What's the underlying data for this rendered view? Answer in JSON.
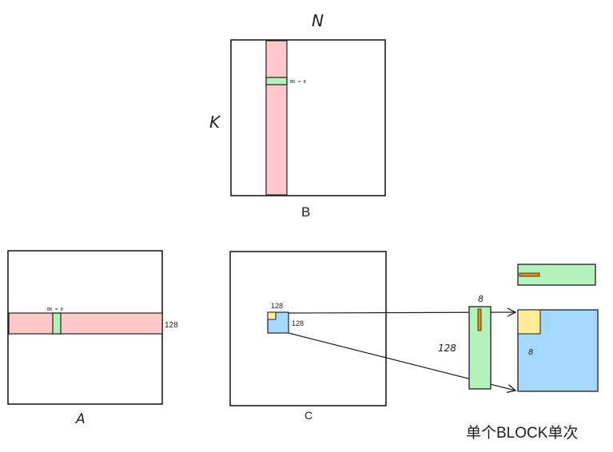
{
  "labels": {
    "n": "N",
    "k": "K",
    "b": "B",
    "a": "A",
    "c": "C",
    "bk_b": "BK = 8",
    "bk_a": "BK = 8",
    "a_rows": "128",
    "c_tile_top": "128",
    "c_tile_right": "128",
    "right_top_8": "8",
    "right_128": "128",
    "right_blue_8": "8",
    "caption": "单个BLOCK单次"
  },
  "colors": {
    "pink": "#ffc9c9",
    "green": "#b2f2bb",
    "blue": "#a5d8ff",
    "yellow": "#ffec99",
    "orange": "#f08c00",
    "stroke": "#1e1e1e"
  }
}
